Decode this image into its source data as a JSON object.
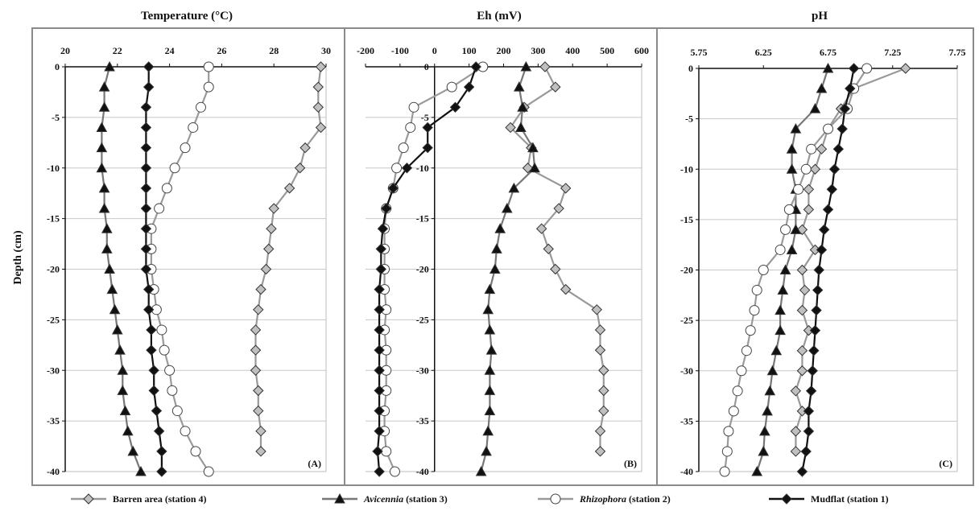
{
  "y_axis_label": "Depth (cm)",
  "legend": [
    {
      "key": "barren",
      "name_italic": "",
      "name_rest": "Barren area (station 4)"
    },
    {
      "key": "avicennia",
      "name_italic": "Avicennia",
      "name_rest": " (station 3)"
    },
    {
      "key": "rhizophora",
      "name_italic": "Rhizophora",
      "name_rest": " (station 2)"
    },
    {
      "key": "mudflat",
      "name_italic": "",
      "name_rest": "Mudflat (station 1)"
    }
  ],
  "series_style": {
    "barren": {
      "marker": "diamond",
      "fill": "#c0c0c0",
      "line": "#999999"
    },
    "avicennia": {
      "marker": "triangle",
      "fill": "#111111",
      "line": "#777777"
    },
    "rhizophora": {
      "marker": "circle",
      "fill": "#ffffff",
      "line": "#9a9a9a"
    },
    "mudflat": {
      "marker": "diamond",
      "fill": "#111111",
      "line": "#111111"
    }
  },
  "chart_data": [
    {
      "type": "line",
      "title": "Temperature (°C)",
      "panel_label": "(A)",
      "xlim": [
        20,
        30
      ],
      "xticks": [
        "20",
        "22",
        "24",
        "26",
        "28",
        "30"
      ],
      "xtick_values": [
        20,
        22,
        24,
        26,
        28,
        30
      ],
      "ylim": [
        -40,
        0
      ],
      "yticks": [
        "0",
        "-5",
        "-10",
        "-15",
        "-20",
        "-25",
        "-30",
        "-35",
        "-40"
      ],
      "ytick_values": [
        0,
        -5,
        -10,
        -15,
        -20,
        -25,
        -30,
        -35,
        -40
      ],
      "grid": "horizontal",
      "series": [
        {
          "key": "barren",
          "name": "Barren area (station 4)",
          "depth": [
            0,
            -2,
            -4,
            -6,
            -8,
            -10,
            -12,
            -14,
            -16,
            -18,
            -20,
            -22,
            -24,
            -26,
            -28,
            -30,
            -32,
            -34,
            -36,
            -38
          ],
          "values": [
            29.8,
            29.7,
            29.7,
            29.8,
            29.2,
            29.0,
            28.6,
            28.0,
            27.9,
            27.8,
            27.7,
            27.5,
            27.4,
            27.3,
            27.3,
            27.3,
            27.4,
            27.4,
            27.5,
            27.5
          ]
        },
        {
          "key": "avicennia",
          "name": "Avicennia (station 3)",
          "depth": [
            0,
            -2,
            -4,
            -6,
            -8,
            -10,
            -12,
            -14,
            -16,
            -18,
            -20,
            -22,
            -24,
            -26,
            -28,
            -30,
            -32,
            -34,
            -36,
            -38,
            -40
          ],
          "values": [
            21.7,
            21.5,
            21.5,
            21.4,
            21.4,
            21.4,
            21.5,
            21.5,
            21.6,
            21.6,
            21.7,
            21.8,
            21.9,
            22.0,
            22.1,
            22.2,
            22.2,
            22.3,
            22.4,
            22.6,
            22.9
          ]
        },
        {
          "key": "rhizophora",
          "name": "Rhizophora (station 2)",
          "depth": [
            0,
            -2,
            -4,
            -6,
            -8,
            -10,
            -12,
            -14,
            -16,
            -18,
            -20,
            -22,
            -24,
            -26,
            -28,
            -30,
            -32,
            -34,
            -36,
            -38,
            -40
          ],
          "values": [
            25.5,
            25.5,
            25.2,
            24.9,
            24.6,
            24.2,
            23.9,
            23.6,
            23.3,
            23.3,
            23.3,
            23.4,
            23.5,
            23.7,
            23.8,
            24.0,
            24.1,
            24.3,
            24.6,
            25.0,
            25.5
          ]
        },
        {
          "key": "mudflat",
          "name": "Mudflat (station 1)",
          "depth": [
            0,
            -2,
            -4,
            -6,
            -8,
            -10,
            -12,
            -14,
            -16,
            -18,
            -20,
            -22,
            -24,
            -26,
            -28,
            -30,
            -32,
            -34,
            -36,
            -38,
            -40
          ],
          "values": [
            23.2,
            23.2,
            23.1,
            23.1,
            23.1,
            23.1,
            23.1,
            23.1,
            23.1,
            23.1,
            23.1,
            23.2,
            23.2,
            23.3,
            23.3,
            23.4,
            23.4,
            23.5,
            23.6,
            23.7,
            23.7
          ]
        }
      ]
    },
    {
      "type": "line",
      "title": "Eh (mV)",
      "panel_label": "(B)",
      "xlim": [
        -200,
        600
      ],
      "xticks": [
        "-200",
        "-100",
        "0",
        "100",
        "200",
        "300",
        "400",
        "500",
        "600"
      ],
      "xtick_values": [
        -200,
        -100,
        0,
        100,
        200,
        300,
        400,
        500,
        600
      ],
      "ylim": [
        -40,
        0
      ],
      "yticks": [
        "0",
        "-5",
        "-10",
        "-15",
        "-20",
        "-25",
        "-30",
        "-35",
        "-40"
      ],
      "ytick_values": [
        0,
        -5,
        -10,
        -15,
        -20,
        -25,
        -30,
        -35,
        -40
      ],
      "grid": "horizontal",
      "series": [
        {
          "key": "barren",
          "name": "Barren area (station 4)",
          "depth": [
            0,
            -2,
            -4,
            -6,
            -8,
            -10,
            -12,
            -14,
            -16,
            -18,
            -20,
            -22,
            -24,
            -26,
            -28,
            -30,
            -32,
            -34,
            -36,
            -38
          ],
          "values": [
            320,
            350,
            260,
            220,
            280,
            270,
            380,
            360,
            310,
            330,
            350,
            380,
            470,
            480,
            480,
            490,
            490,
            490,
            480,
            480
          ]
        },
        {
          "key": "avicennia",
          "name": "Avicennia (station 3)",
          "depth": [
            0,
            -2,
            -4,
            -6,
            -8,
            -10,
            -12,
            -14,
            -16,
            -18,
            -20,
            -22,
            -24,
            -26,
            -28,
            -30,
            -32,
            -34,
            -36,
            -38,
            -40
          ],
          "values": [
            265,
            245,
            255,
            250,
            285,
            290,
            230,
            210,
            190,
            180,
            175,
            160,
            155,
            160,
            165,
            160,
            160,
            160,
            155,
            150,
            135
          ]
        },
        {
          "key": "rhizophora",
          "name": "Rhizophora (station 2)",
          "depth": [
            0,
            -2,
            -4,
            -6,
            -8,
            -10,
            -12,
            -14,
            -16,
            -18,
            -20,
            -22,
            -24,
            -26,
            -28,
            -30,
            -32,
            -34,
            -36,
            -38,
            -40
          ],
          "values": [
            140,
            50,
            -60,
            -70,
            -90,
            -110,
            -120,
            -140,
            -145,
            -145,
            -145,
            -145,
            -140,
            -145,
            -140,
            -140,
            -140,
            -145,
            -145,
            -140,
            -115
          ]
        },
        {
          "key": "mudflat",
          "name": "Mudflat (station 1)",
          "depth": [
            0,
            -2,
            -4,
            -6,
            -8,
            -10,
            -12,
            -14,
            -16,
            -18,
            -20,
            -22,
            -24,
            -26,
            -28,
            -30,
            -32,
            -34,
            -36,
            -38,
            -40
          ],
          "values": [
            120,
            100,
            60,
            -20,
            -20,
            -80,
            -120,
            -140,
            -150,
            -155,
            -155,
            -160,
            -160,
            -160,
            -160,
            -160,
            -160,
            -160,
            -160,
            -165,
            -160
          ]
        }
      ]
    },
    {
      "type": "line",
      "title": "pH",
      "panel_label": "(C)",
      "xlim": [
        5.75,
        7.75
      ],
      "xticks": [
        "5.75",
        "6.25",
        "6.75",
        "7.25",
        "7.75"
      ],
      "xtick_values": [
        5.75,
        6.25,
        6.75,
        7.25,
        7.75
      ],
      "ylim": [
        -40,
        0
      ],
      "yticks": [
        "0",
        "-5",
        "-10",
        "-15",
        "-20",
        "-25",
        "-30",
        "-35",
        "-40"
      ],
      "ytick_values": [
        0,
        -5,
        -10,
        -15,
        -20,
        -25,
        -30,
        -35,
        -40
      ],
      "grid": "horizontal",
      "series": [
        {
          "key": "barren",
          "name": "Barren area (station 4)",
          "depth": [
            0,
            -2,
            -4,
            -6,
            -8,
            -10,
            -12,
            -14,
            -16,
            -18,
            -20,
            -22,
            -24,
            -26,
            -28,
            -30,
            -32,
            -34,
            -36,
            -38
          ],
          "values": [
            7.35,
            6.95,
            6.85,
            6.75,
            6.7,
            6.65,
            6.6,
            6.6,
            6.55,
            6.65,
            6.55,
            6.57,
            6.55,
            6.6,
            6.55,
            6.55,
            6.5,
            6.55,
            6.5,
            6.5
          ]
        },
        {
          "key": "avicennia",
          "name": "Avicennia (station 3)",
          "depth": [
            0,
            -2,
            -4,
            -6,
            -8,
            -10,
            -12,
            -14,
            -16,
            -18,
            -20,
            -22,
            -24,
            -26,
            -28,
            -30,
            -32,
            -34,
            -36,
            -38,
            -40
          ],
          "values": [
            6.75,
            6.7,
            6.65,
            6.5,
            6.47,
            6.47,
            6.5,
            6.5,
            6.5,
            6.47,
            6.42,
            6.4,
            6.38,
            6.38,
            6.35,
            6.32,
            6.3,
            6.28,
            6.26,
            6.25,
            6.2
          ]
        },
        {
          "key": "rhizophora",
          "name": "Rhizophora (station 2)",
          "depth": [
            0,
            -2,
            -4,
            -6,
            -8,
            -10,
            -12,
            -14,
            -16,
            -18,
            -20,
            -22,
            -24,
            -26,
            -28,
            -30,
            -32,
            -34,
            -36,
            -38,
            -40
          ],
          "values": [
            7.05,
            6.95,
            6.9,
            6.75,
            6.62,
            6.58,
            6.52,
            6.45,
            6.42,
            6.38,
            6.25,
            6.2,
            6.18,
            6.15,
            6.12,
            6.08,
            6.05,
            6.02,
            5.98,
            5.97,
            5.95
          ]
        },
        {
          "key": "mudflat",
          "name": "Mudflat (station 1)",
          "depth": [
            0,
            -2,
            -4,
            -6,
            -8,
            -10,
            -12,
            -14,
            -16,
            -18,
            -20,
            -22,
            -24,
            -26,
            -28,
            -30,
            -32,
            -34,
            -36,
            -38,
            -40
          ],
          "values": [
            6.95,
            6.92,
            6.88,
            6.86,
            6.83,
            6.8,
            6.78,
            6.75,
            6.72,
            6.7,
            6.68,
            6.67,
            6.66,
            6.65,
            6.64,
            6.63,
            6.62,
            6.6,
            6.6,
            6.58,
            6.55
          ]
        }
      ]
    }
  ]
}
